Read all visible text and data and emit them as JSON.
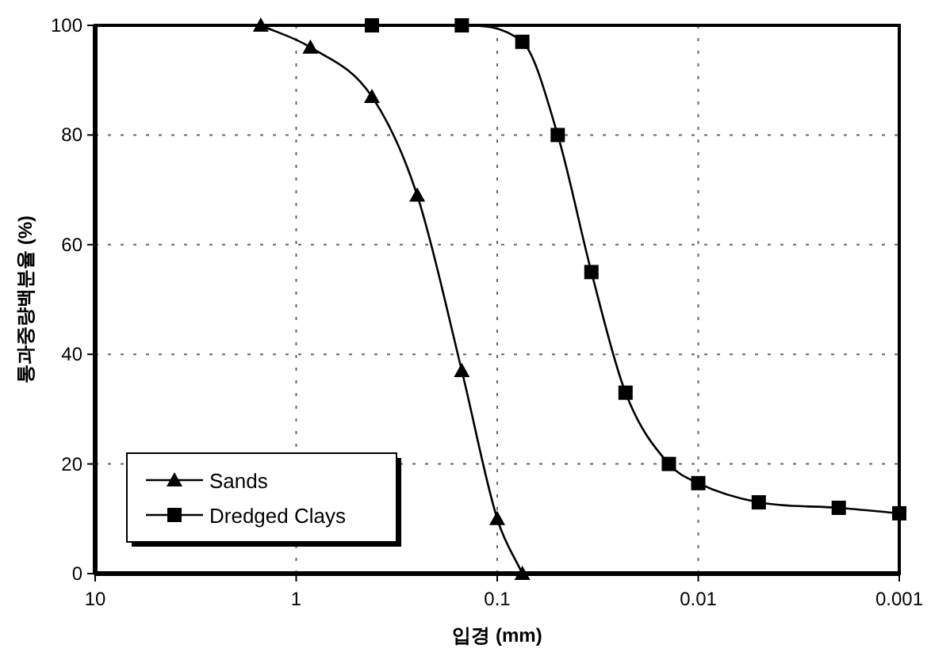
{
  "chart_data": {
    "type": "line",
    "xlabel": "입경 (mm)",
    "ylabel": "통과중량백분율 (%)",
    "log": "x",
    "xlim": [
      10,
      0.001
    ],
    "ylim": [
      0,
      100
    ],
    "xticks": [
      10,
      1,
      0.1,
      0.01,
      0.001
    ],
    "yticks": [
      0,
      20,
      40,
      60,
      80,
      100
    ],
    "grid": true,
    "legend": "bottom left",
    "series": [
      {
        "name": "Sands",
        "color": "#000000",
        "marker": "triangle",
        "x": [
          1.5,
          0.85,
          0.42,
          0.25,
          0.15,
          0.1,
          0.075
        ],
        "values": [
          100,
          96,
          87,
          69,
          37,
          10,
          0
        ]
      },
      {
        "name": "Dredged Clays",
        "color": "#000000",
        "marker": "square",
        "x": [
          0.42,
          0.15,
          0.075,
          0.05,
          0.034,
          0.023,
          0.014,
          0.01,
          0.005,
          0.002,
          0.001
        ],
        "values": [
          100,
          100,
          97,
          80,
          55,
          33,
          20,
          16.5,
          13,
          12,
          11
        ]
      }
    ]
  }
}
